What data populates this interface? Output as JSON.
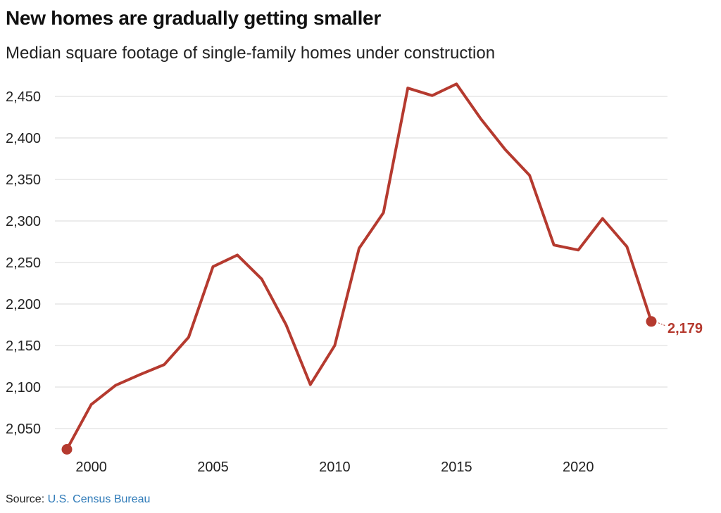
{
  "header": {
    "title": "New homes are gradually getting smaller",
    "subtitle": "Median square footage of single-family homes under construction"
  },
  "footer": {
    "source_label": "Source:",
    "source_name": "U.S. Census Bureau"
  },
  "colors": {
    "series": "#b53a2f",
    "grid": "#d9d9d9",
    "link": "#2e7ab8"
  },
  "chart_data": {
    "type": "line",
    "title": "New homes are gradually getting smaller",
    "subtitle": "Median square footage of single-family homes under construction",
    "xlabel": "",
    "ylabel": "",
    "x": [
      1999,
      2000,
      2001,
      2002,
      2003,
      2004,
      2005,
      2006,
      2007,
      2008,
      2009,
      2010,
      2011,
      2012,
      2013,
      2014,
      2015,
      2016,
      2017,
      2018,
      2019,
      2020,
      2021,
      2022,
      2023
    ],
    "series": [
      {
        "name": "Median square footage",
        "values": [
          2025,
          2079,
          2102,
          2115,
          2127,
          2160,
          2245,
          2259,
          2230,
          2175,
          2103,
          2150,
          2267,
          2310,
          2460,
          2451,
          2465,
          2423,
          2386,
          2355,
          2271,
          2265,
          2303,
          2269,
          2179
        ]
      }
    ],
    "xlim": [
      1998.5,
      2024.5
    ],
    "ylim": [
      2020,
      2475
    ],
    "yticks": [
      2050,
      2100,
      2150,
      2200,
      2250,
      2300,
      2350,
      2400,
      2450
    ],
    "ytick_labels": [
      "2,050",
      "2,100",
      "2,150",
      "2,200",
      "2,250",
      "2,300",
      "2,350",
      "2,400",
      "2,450"
    ],
    "xticks": [
      2000,
      2005,
      2010,
      2015,
      2020
    ],
    "xtick_labels": [
      "2000",
      "2005",
      "2010",
      "2015",
      "2020"
    ],
    "grid": true,
    "annotations": [
      {
        "x": 2023,
        "y": 2179,
        "text": "2,179"
      }
    ],
    "markers": [
      {
        "x": 1999,
        "y": 2025
      },
      {
        "x": 2023,
        "y": 2179
      }
    ]
  }
}
